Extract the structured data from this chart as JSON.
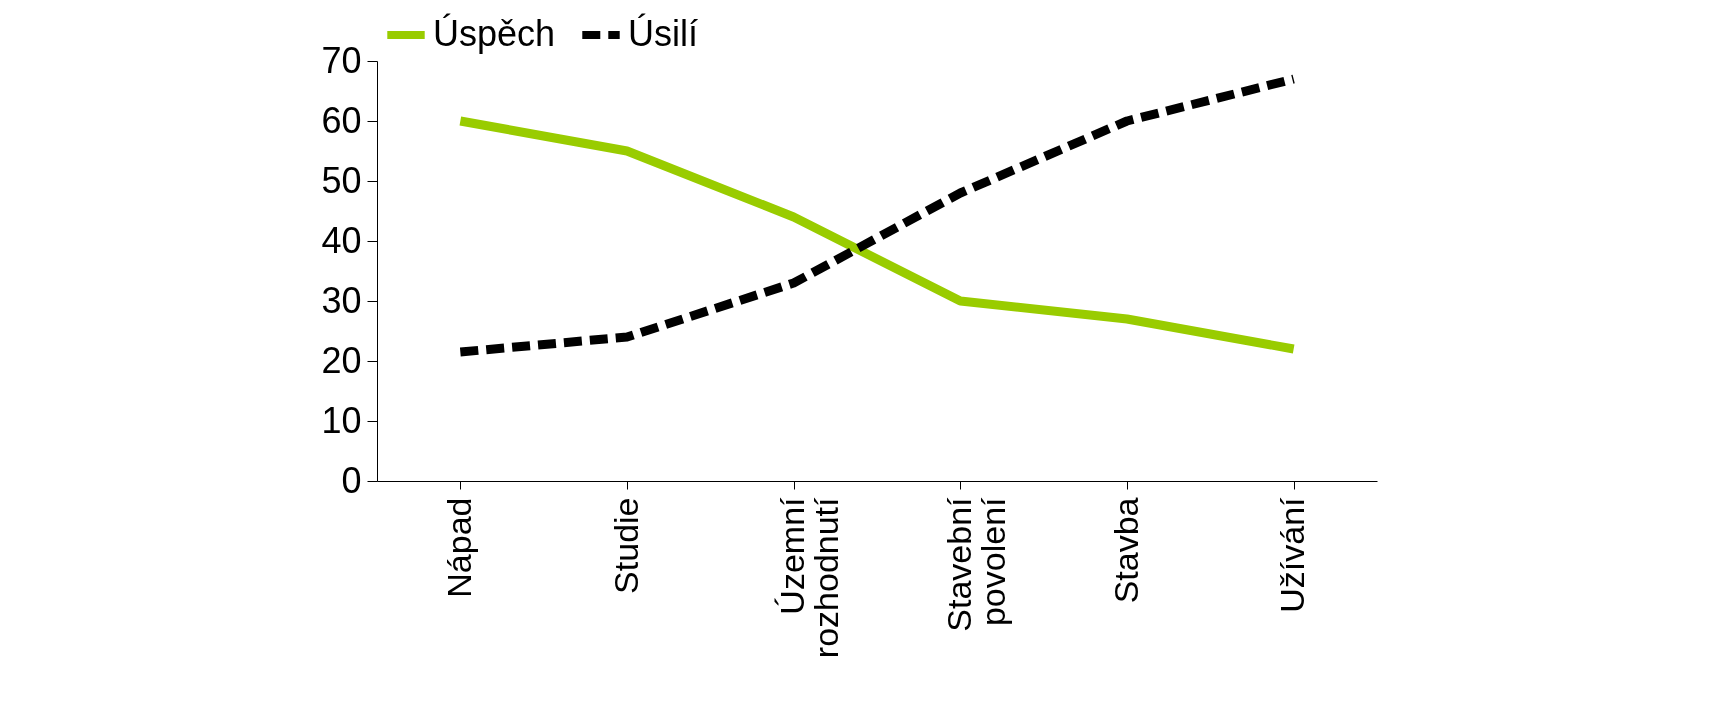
{
  "chart_data": {
    "type": "line",
    "categories": [
      "Nápad",
      "Studie",
      "Územní rozhodnutí",
      "Stavební povolení",
      "Stavba",
      "Užívání"
    ],
    "series": [
      {
        "name": "Úspěch",
        "color": "#99cc00",
        "line_style": "solid",
        "values": [
          60,
          55,
          44,
          30,
          27,
          22
        ]
      },
      {
        "name": "Úsilí",
        "color": "#000000",
        "line_style": "dashed",
        "values": [
          21.5,
          24,
          33,
          48,
          60,
          67
        ]
      }
    ],
    "ylim": [
      0,
      70
    ],
    "yticks": [
      0,
      10,
      20,
      30,
      40,
      50,
      60,
      70
    ],
    "grid": false,
    "legend": "top",
    "marker": "none"
  }
}
